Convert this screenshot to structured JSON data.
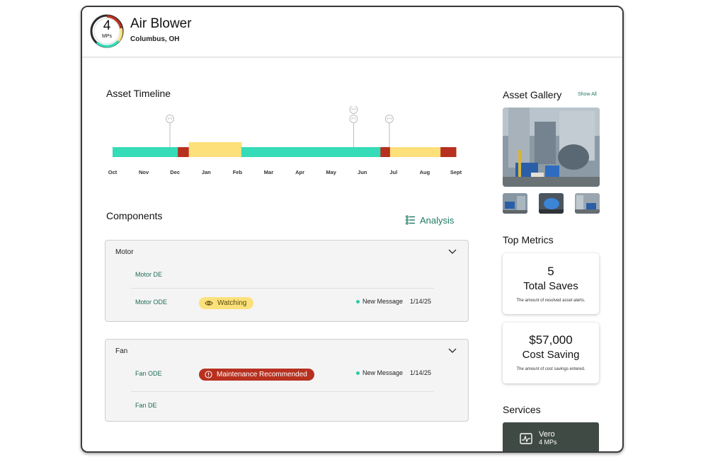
{
  "header": {
    "mp_count": "4",
    "mp_unit": "MPs",
    "asset_name": "Air Blower",
    "location": "Columbus, OH"
  },
  "timeline": {
    "title": "Asset Timeline",
    "months": [
      "Oct",
      "Nov",
      "Dec",
      "Jan",
      "Feb",
      "Mar",
      "Apr",
      "May",
      "Jun",
      "Jul",
      "Aug",
      "Sept"
    ],
    "segments": [
      {
        "status": "healthy",
        "start": 0.0,
        "end": 0.19
      },
      {
        "status": "alert",
        "start": 0.19,
        "end": 0.222
      },
      {
        "status": "warning",
        "start": 0.222,
        "end": 0.375
      },
      {
        "status": "healthy",
        "start": 0.375,
        "end": 0.78
      },
      {
        "status": "alert",
        "start": 0.78,
        "end": 0.808
      },
      {
        "status": "warning",
        "start": 0.808,
        "end": 0.955
      },
      {
        "status": "alert",
        "start": 0.955,
        "end": 1.0
      }
    ],
    "markers": [
      {
        "position": 0.167,
        "count": 1
      },
      {
        "position": 0.702,
        "count": 2
      },
      {
        "position": 0.806,
        "count": 1
      }
    ],
    "colors": {
      "healthy": "#36dbb8",
      "alert": "#b8301f",
      "warning": "#fde07a"
    }
  },
  "components": {
    "title": "Components",
    "analysis_label": "Analysis",
    "groups": [
      {
        "name": "Motor",
        "rows": [
          {
            "label": "Motor DE"
          },
          {
            "label": "Motor ODE",
            "badge": "Watching",
            "message": "New Message",
            "date": "1/14/25"
          }
        ]
      },
      {
        "name": "Fan",
        "rows": [
          {
            "label": "Fan ODE",
            "badge": "Maintenance Recommended",
            "message": "New Message",
            "date": "1/14/25"
          },
          {
            "label": "Fan DE"
          }
        ]
      }
    ]
  },
  "gallery": {
    "title": "Asset Gallery",
    "show_all": "Show All"
  },
  "metrics": {
    "title": "Top Metrics",
    "cards": [
      {
        "value": "5",
        "label": "Total Saves",
        "desc": "The amount of resolved asset alerts."
      },
      {
        "value": "$57,000",
        "label": "Cost Saving",
        "desc": "The amount of cost savings entered."
      }
    ]
  },
  "services": {
    "title": "Services",
    "items": [
      {
        "name": "Vero",
        "sub": "4 MPs"
      }
    ]
  }
}
